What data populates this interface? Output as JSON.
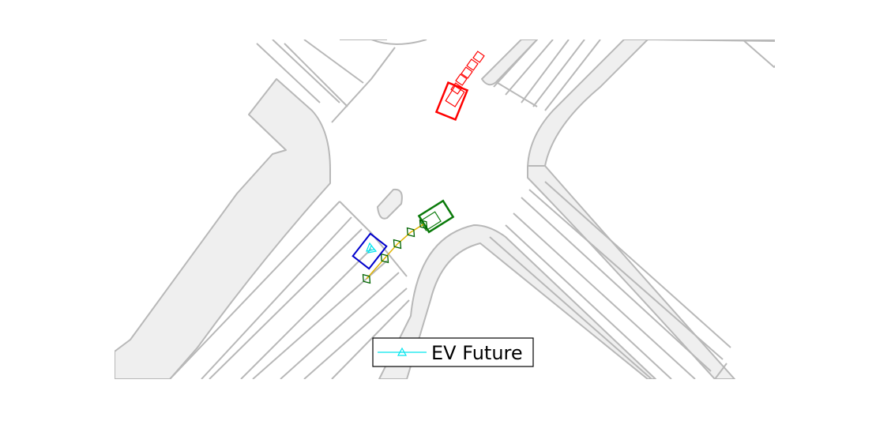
{
  "legend": {
    "entries": [
      {
        "label": "EV Future",
        "color": "#00e5ee",
        "marker": "triangle-marker"
      }
    ]
  },
  "colors": {
    "background": "#ffffff",
    "map_line": "#b8b8b8",
    "map_fill": "#efefef",
    "ego_vehicle": "#0000cc",
    "ev_future": "#00e5ee",
    "agent_green": "#006400",
    "agent_red": "#ff0000",
    "trajectory_link": "#e0b400"
  }
}
